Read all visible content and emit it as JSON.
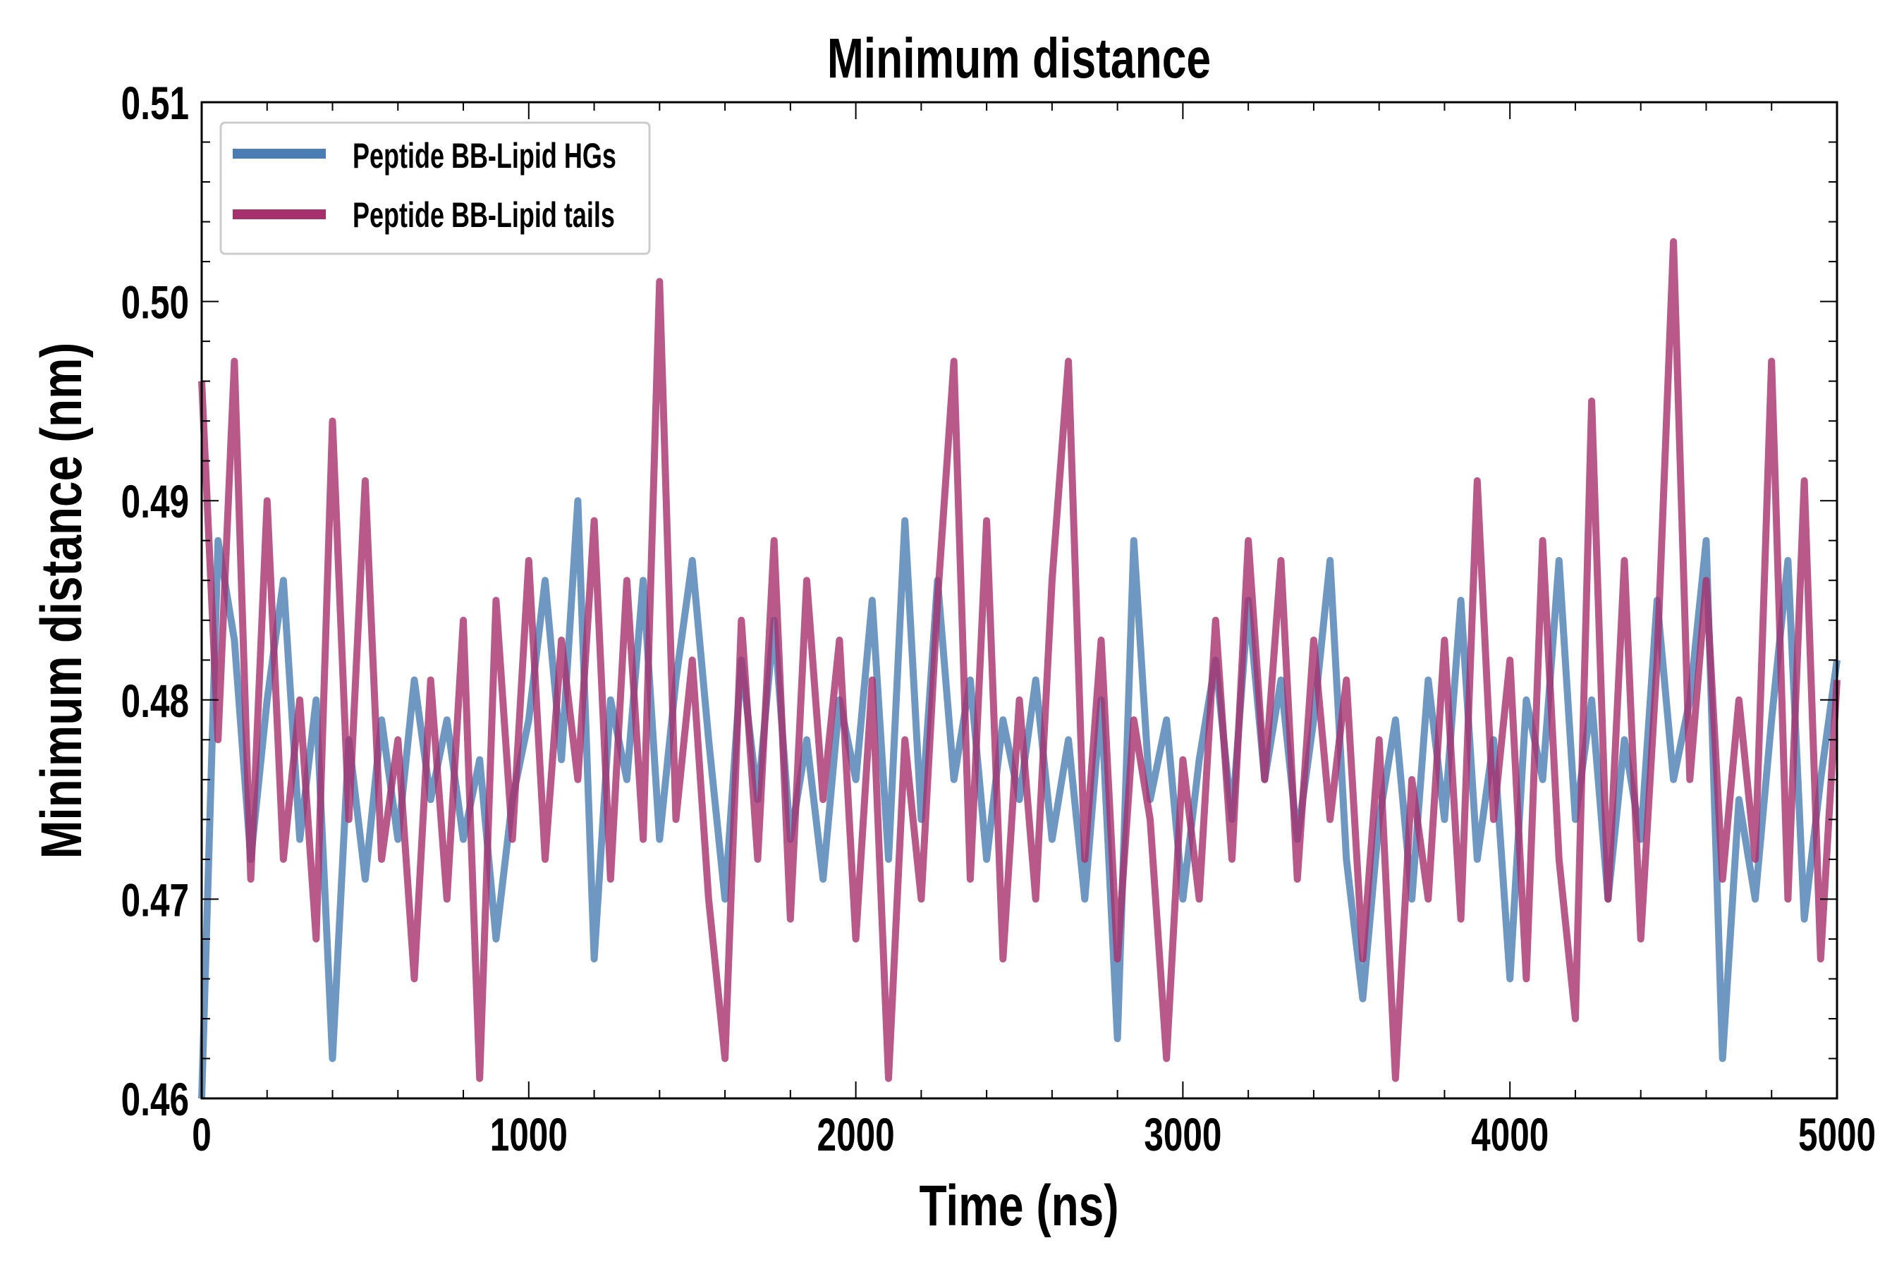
{
  "chart_data": {
    "type": "line",
    "title": "Minimum distance",
    "xlabel": "Time (ns)",
    "ylabel": "Minimum distance (nm)",
    "xlim": [
      0,
      5000
    ],
    "ylim": [
      0.46,
      0.51
    ],
    "xticks": [
      "0",
      "1000",
      "2000",
      "3000",
      "4000",
      "5000"
    ],
    "yticks": [
      "0.46",
      "0.47",
      "0.48",
      "0.49",
      "0.50",
      "0.51"
    ],
    "grid": false,
    "legend_position": "top-left",
    "x": [
      0,
      50,
      100,
      150,
      200,
      250,
      300,
      350,
      400,
      450,
      500,
      550,
      600,
      650,
      700,
      750,
      800,
      850,
      900,
      950,
      1000,
      1050,
      1100,
      1150,
      1200,
      1250,
      1300,
      1350,
      1400,
      1450,
      1500,
      1550,
      1600,
      1650,
      1700,
      1750,
      1800,
      1850,
      1900,
      1950,
      2000,
      2050,
      2100,
      2150,
      2200,
      2250,
      2300,
      2350,
      2400,
      2450,
      2500,
      2550,
      2600,
      2650,
      2700,
      2750,
      2800,
      2850,
      2900,
      2950,
      3000,
      3050,
      3100,
      3150,
      3200,
      3250,
      3300,
      3350,
      3400,
      3450,
      3500,
      3550,
      3600,
      3650,
      3700,
      3750,
      3800,
      3850,
      3900,
      3950,
      4000,
      4050,
      4100,
      4150,
      4200,
      4250,
      4300,
      4350,
      4400,
      4450,
      4500,
      4550,
      4600,
      4650,
      4700,
      4750,
      4800,
      4850,
      4900,
      4950,
      5000
    ],
    "series": [
      {
        "name": "Peptide BB-Lipid HGs",
        "color": "#4a7db3",
        "values": [
          0.46,
          0.488,
          0.483,
          0.472,
          0.48,
          0.486,
          0.473,
          0.48,
          0.462,
          0.478,
          0.471,
          0.479,
          0.473,
          0.481,
          0.475,
          0.479,
          0.473,
          0.477,
          0.468,
          0.475,
          0.479,
          0.486,
          0.477,
          0.49,
          0.467,
          0.48,
          0.476,
          0.486,
          0.473,
          0.481,
          0.487,
          0.478,
          0.47,
          0.482,
          0.475,
          0.484,
          0.473,
          0.478,
          0.471,
          0.48,
          0.476,
          0.485,
          0.472,
          0.489,
          0.474,
          0.486,
          0.476,
          0.481,
          0.472,
          0.479,
          0.475,
          0.481,
          0.473,
          0.478,
          0.47,
          0.48,
          0.463,
          0.488,
          0.475,
          0.479,
          0.47,
          0.477,
          0.482,
          0.474,
          0.485,
          0.476,
          0.481,
          0.473,
          0.479,
          0.487,
          0.472,
          0.465,
          0.474,
          0.479,
          0.47,
          0.481,
          0.474,
          0.485,
          0.472,
          0.478,
          0.466,
          0.48,
          0.476,
          0.487,
          0.474,
          0.48,
          0.47,
          0.478,
          0.473,
          0.485,
          0.476,
          0.48,
          0.488,
          0.462,
          0.475,
          0.47,
          0.479,
          0.487,
          0.469,
          0.476,
          0.482
        ]
      },
      {
        "name": "Peptide BB-Lipid tails",
        "color": "#a62f6d",
        "values": [
          0.496,
          0.478,
          0.497,
          0.471,
          0.49,
          0.472,
          0.48,
          0.468,
          0.494,
          0.474,
          0.491,
          0.472,
          0.478,
          0.466,
          0.481,
          0.47,
          0.484,
          0.461,
          0.485,
          0.473,
          0.487,
          0.472,
          0.483,
          0.476,
          0.489,
          0.471,
          0.486,
          0.473,
          0.501,
          0.474,
          0.482,
          0.47,
          0.462,
          0.484,
          0.472,
          0.488,
          0.469,
          0.486,
          0.475,
          0.483,
          0.468,
          0.481,
          0.461,
          0.478,
          0.47,
          0.485,
          0.497,
          0.471,
          0.489,
          0.467,
          0.48,
          0.47,
          0.486,
          0.497,
          0.472,
          0.483,
          0.467,
          0.479,
          0.474,
          0.462,
          0.477,
          0.47,
          0.484,
          0.472,
          0.488,
          0.476,
          0.487,
          0.471,
          0.483,
          0.474,
          0.481,
          0.467,
          0.478,
          0.461,
          0.476,
          0.47,
          0.483,
          0.469,
          0.491,
          0.474,
          0.482,
          0.466,
          0.488,
          0.472,
          0.464,
          0.495,
          0.47,
          0.487,
          0.468,
          0.482,
          0.503,
          0.476,
          0.486,
          0.471,
          0.48,
          0.472,
          0.497,
          0.47,
          0.491,
          0.467,
          0.481
        ]
      }
    ]
  }
}
